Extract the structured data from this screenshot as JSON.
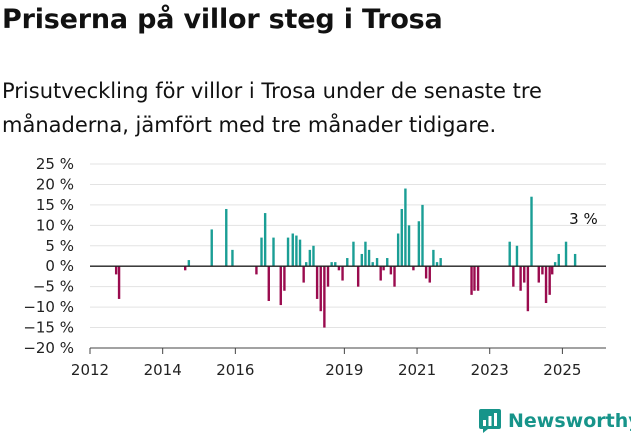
{
  "title": "Priserna på villor steg i Trosa",
  "subtitle": "Prisutveckling för villor i Trosa under de senaste tre månaderna, jämfört med tre månader tidigare.",
  "brand": "Newsworthy",
  "colors": {
    "positive": "#1a9e95",
    "negative": "#9a0b4e",
    "axis": "#444444",
    "grid": "#e3e3e3",
    "brand": "#17948a"
  },
  "chart_data": {
    "type": "bar",
    "title": "",
    "xlabel": "",
    "ylabel": "",
    "ylim": [
      -20,
      25
    ],
    "yticks": [
      -20,
      -15,
      -10,
      -5,
      0,
      5,
      10,
      15,
      20,
      25
    ],
    "ytick_labels": [
      "−20 %",
      "−15 %",
      "−10 %",
      "−5 %",
      "0 %",
      "5 %",
      "10 %",
      "15 %",
      "20 %",
      "25 %"
    ],
    "xlim": [
      2012,
      2026.2
    ],
    "xtick_labels": [
      "2012",
      "2014",
      "2016",
      "2019",
      "2021",
      "2023",
      "2025"
    ],
    "xtick_positions": [
      2012,
      2014,
      2016,
      2019,
      2021,
      2023,
      2025
    ],
    "annotation": {
      "text": "3 %",
      "x": 2025.58,
      "y": 3
    },
    "series": [
      {
        "x": [
          2012.72,
          2012.8,
          2014.62,
          2014.72,
          2015.35,
          2015.75,
          2015.92,
          2016.58,
          2016.72,
          2016.82,
          2016.92,
          2017.05,
          2017.25,
          2017.35,
          2017.45,
          2017.58,
          2017.68,
          2017.78,
          2017.88,
          2017.95,
          2018.05,
          2018.15,
          2018.25,
          2018.35,
          2018.45,
          2018.55,
          2018.65,
          2018.75,
          2018.85,
          2018.95,
          2019.08,
          2019.25,
          2019.38,
          2019.48,
          2019.58,
          2019.68,
          2019.78,
          2019.9,
          2020.0,
          2020.08,
          2020.18,
          2020.28,
          2020.38,
          2020.48,
          2020.58,
          2020.68,
          2020.78,
          2020.9,
          2021.05,
          2021.15,
          2021.25,
          2021.35,
          2021.45,
          2021.55,
          2021.65,
          2022.5,
          2022.58,
          2022.68,
          2023.55,
          2023.65,
          2023.75,
          2023.85,
          2023.95,
          2024.05,
          2024.15,
          2024.35,
          2024.45,
          2024.55,
          2024.65,
          2024.72,
          2024.8,
          2024.9,
          2025.1,
          2025.35
        ],
        "values": [
          -2,
          -8,
          -1,
          1.5,
          9,
          14,
          4,
          -2,
          7,
          13,
          -8.5,
          7,
          -9.5,
          -6,
          7,
          8,
          7.5,
          6.5,
          -4,
          1,
          4,
          5,
          -8,
          -11,
          -15,
          -5,
          1,
          1,
          -1,
          -3.5,
          2,
          6,
          -5,
          3,
          6,
          4,
          1,
          2,
          -3.5,
          -1,
          2,
          -2,
          -5,
          8,
          14,
          19,
          10,
          -1,
          11,
          15,
          -3,
          -4,
          4,
          1,
          2,
          -7,
          -6,
          -6,
          6,
          -5,
          5,
          -6,
          -4,
          -11,
          17,
          -4,
          -2,
          -9,
          -7,
          -2,
          1,
          3,
          6,
          3
        ]
      }
    ]
  }
}
